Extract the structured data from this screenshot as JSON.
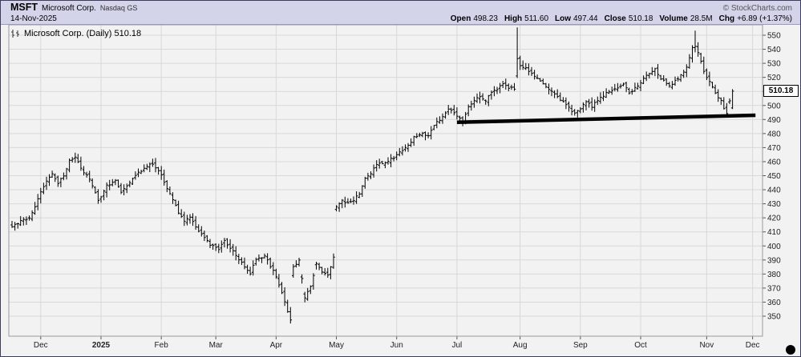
{
  "colors": {
    "header_bg": "#d3d3ea",
    "header_border": "#9a9ac0",
    "page_border": "#3c3c5c",
    "chart_bg": "#f2f2f2",
    "grid": "#d8d8d8",
    "frame": "#999999",
    "bar": "#000000",
    "trendline": "#000000",
    "axis_text": "#222222",
    "credit_text": "#555555",
    "tag_border": "#000000"
  },
  "header": {
    "symbol": "MSFT",
    "company": "Microsoft Corp.",
    "exchange": "Nasdaq GS",
    "copyright": "© StockCharts.com",
    "date": "14-Nov-2025",
    "quote": [
      {
        "label": "Open",
        "value": "498.23"
      },
      {
        "label": "High",
        "value": "511.60"
      },
      {
        "label": "Low",
        "value": "497.44"
      },
      {
        "label": "Close",
        "value": "510.18"
      },
      {
        "label": "Volume",
        "value": "28.5M"
      },
      {
        "label": "Chg",
        "value": "+6.89 (+1.37%)"
      }
    ]
  },
  "legend": {
    "label": "Microsoft Corp. (Daily) 510.18"
  },
  "price_tag": "510.18",
  "chart_data": {
    "type": "ohlc-bar",
    "symbol": "MSFT",
    "timeframe": "Daily",
    "title": "Microsoft Corp. (Daily)",
    "last_close": 510.18,
    "date_range": "mid-Nov 2024 to 14-Nov-2025",
    "ylim": [
      335,
      557
    ],
    "grid": true,
    "y_ticks": [
      350,
      360,
      370,
      380,
      390,
      400,
      410,
      420,
      430,
      440,
      450,
      460,
      470,
      480,
      490,
      500,
      510,
      520,
      530,
      540,
      550
    ],
    "x_axis": {
      "months": [
        {
          "label": "Dec",
          "day": 10
        },
        {
          "label": "2025",
          "day": 31,
          "bold": true
        },
        {
          "label": "Feb",
          "day": 52
        },
        {
          "label": "Mar",
          "day": 71
        },
        {
          "label": "Apr",
          "day": 92
        },
        {
          "label": "May",
          "day": 113
        },
        {
          "label": "Jun",
          "day": 134
        },
        {
          "label": "Jul",
          "day": 155
        },
        {
          "label": "Aug",
          "day": 177
        },
        {
          "label": "Sep",
          "day": 198
        },
        {
          "label": "Oct",
          "day": 219
        },
        {
          "label": "Nov",
          "day": 242
        },
        {
          "label": "Dec",
          "day": 258
        }
      ]
    },
    "anchors": [
      [
        0,
        413
      ],
      [
        3,
        418
      ],
      [
        6,
        420
      ],
      [
        8,
        428
      ],
      [
        10,
        438
      ],
      [
        12,
        446
      ],
      [
        14,
        451
      ],
      [
        16,
        445
      ],
      [
        18,
        450
      ],
      [
        20,
        461
      ],
      [
        22,
        464
      ],
      [
        24,
        455
      ],
      [
        27,
        448
      ],
      [
        30,
        432
      ],
      [
        33,
        443
      ],
      [
        36,
        446
      ],
      [
        38,
        439
      ],
      [
        41,
        445
      ],
      [
        44,
        452
      ],
      [
        47,
        456
      ],
      [
        49,
        459
      ],
      [
        52,
        450
      ],
      [
        55,
        437
      ],
      [
        58,
        424
      ],
      [
        60,
        417
      ],
      [
        62,
        421
      ],
      [
        64,
        414
      ],
      [
        66,
        408
      ],
      [
        69,
        401
      ],
      [
        72,
        398
      ],
      [
        74,
        404
      ],
      [
        77,
        396
      ],
      [
        80,
        388
      ],
      [
        83,
        380
      ],
      [
        85,
        391
      ],
      [
        88,
        393
      ],
      [
        91,
        382
      ],
      [
        93,
        373
      ],
      [
        95,
        360
      ],
      [
        97,
        347
      ],
      [
        98,
        385
      ],
      [
        100,
        390
      ],
      [
        102,
        363
      ],
      [
        104,
        371
      ],
      [
        106,
        387
      ],
      [
        108,
        381
      ],
      [
        110,
        379
      ],
      [
        112,
        392
      ],
      [
        113,
        428
      ],
      [
        115,
        433
      ],
      [
        117,
        430
      ],
      [
        119,
        433
      ],
      [
        121,
        437
      ],
      [
        123,
        449
      ],
      [
        125,
        452
      ],
      [
        127,
        458
      ],
      [
        130,
        460
      ],
      [
        133,
        463
      ],
      [
        136,
        468
      ],
      [
        138,
        471
      ],
      [
        140,
        477
      ],
      [
        143,
        480
      ],
      [
        145,
        478
      ],
      [
        147,
        486
      ],
      [
        150,
        492
      ],
      [
        152,
        498
      ],
      [
        155,
        493
      ],
      [
        157,
        489
      ],
      [
        159,
        499
      ],
      [
        161,
        504
      ],
      [
        163,
        506
      ],
      [
        165,
        503
      ],
      [
        167,
        510
      ],
      [
        169,
        512
      ],
      [
        171,
        515
      ],
      [
        173,
        513
      ],
      [
        175,
        512
      ],
      [
        176,
        533
      ],
      [
        177,
        528
      ],
      [
        179,
        527
      ],
      [
        181,
        522
      ],
      [
        184,
        517
      ],
      [
        187,
        512
      ],
      [
        190,
        506
      ],
      [
        193,
        500
      ],
      [
        196,
        494
      ],
      [
        198,
        498
      ],
      [
        200,
        503
      ],
      [
        202,
        499
      ],
      [
        205,
        506
      ],
      [
        208,
        510
      ],
      [
        211,
        513
      ],
      [
        213,
        515
      ],
      [
        215,
        509
      ],
      [
        218,
        514
      ],
      [
        221,
        521
      ],
      [
        224,
        526
      ],
      [
        226,
        519
      ],
      [
        229,
        514
      ],
      [
        232,
        519
      ],
      [
        235,
        527
      ],
      [
        237,
        541
      ],
      [
        238,
        542
      ],
      [
        240,
        532
      ],
      [
        241,
        524
      ],
      [
        243,
        517
      ],
      [
        245,
        508
      ],
      [
        247,
        503
      ],
      [
        249,
        494
      ],
      [
        250,
        503.3
      ],
      [
        251,
        510.18
      ]
    ],
    "key_bars": {
      "97": {
        "low": 344.8
      },
      "113": {
        "open": 426
      },
      "176": {
        "open": 521,
        "high": 555.5,
        "low": 519.5
      },
      "238": {
        "high": 553.3
      },
      "250": {
        "close": 503.29
      },
      "251": {
        "open": 498.23,
        "high": 511.6,
        "low": 497.44,
        "close": 510.18
      }
    },
    "trendline": {
      "x1_day": 155,
      "price1": 488,
      "x2_day": 259,
      "price2": 493,
      "width": 4.5,
      "note": "thick black horizontal support line from Jul to past Nov at ~488-493"
    }
  }
}
